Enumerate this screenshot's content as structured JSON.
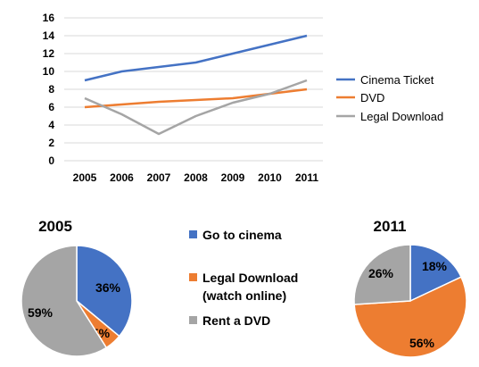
{
  "chart_data": [
    {
      "type": "line",
      "x": [
        "2005",
        "2006",
        "2007",
        "2008",
        "2009",
        "2010",
        "2011"
      ],
      "ylim": [
        0,
        16
      ],
      "yticks": [
        0,
        2,
        4,
        6,
        8,
        10,
        12,
        14,
        16
      ],
      "grid": true,
      "legend": "right",
      "series": [
        {
          "name": "Cinema Ticket",
          "color": "#4472C4",
          "values": [
            9,
            10,
            10.5,
            11,
            12,
            13,
            14
          ]
        },
        {
          "name": "DVD",
          "color": "#ED7D31",
          "values": [
            6,
            6.3,
            6.6,
            6.8,
            7,
            7.5,
            8
          ]
        },
        {
          "name": "Legal Download",
          "color": "#A5A5A5",
          "values": [
            7,
            5.2,
            3,
            5,
            6.5,
            7.5,
            9
          ]
        }
      ]
    },
    {
      "type": "pie",
      "title": "2005",
      "slices": [
        {
          "category": "Go to cinema",
          "value": 36,
          "label": "36%",
          "color": "#4472C4"
        },
        {
          "category": "Legal Download (watch online)",
          "value": 5,
          "label": "5%",
          "color": "#ED7D31"
        },
        {
          "category": "Rent a DVD",
          "value": 59,
          "label": "59%",
          "color": "#A5A5A5"
        }
      ]
    },
    {
      "type": "pie",
      "title": "2011",
      "slices": [
        {
          "category": "Go to cinema",
          "value": 18,
          "label": "18%",
          "color": "#4472C4"
        },
        {
          "category": "Legal Download (watch online)",
          "value": 56,
          "label": "56%",
          "color": "#ED7D31"
        },
        {
          "category": "Rent a DVD",
          "value": 26,
          "label": "26%",
          "color": "#A5A5A5"
        }
      ]
    }
  ],
  "pie_legend": [
    {
      "lines": [
        "Go to cinema"
      ],
      "color": "#4472C4"
    },
    {
      "lines": [
        "Legal Download",
        "(watch online)"
      ],
      "color": "#ED7D31"
    },
    {
      "lines": [
        "Rent a DVD"
      ],
      "color": "#A5A5A5"
    }
  ]
}
